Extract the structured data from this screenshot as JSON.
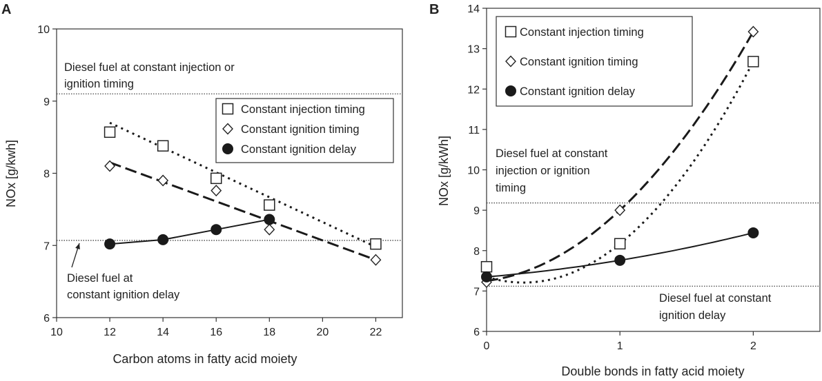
{
  "chart_data": [
    {
      "panel": "A",
      "type": "scatter",
      "xlabel": "Carbon atoms in fatty acid moiety",
      "ylabel": "NOx [g/kwh]",
      "xlim": [
        10,
        23
      ],
      "ylim": [
        6,
        10
      ],
      "xticks": [
        10,
        12,
        14,
        16,
        18,
        20,
        22
      ],
      "yticks": [
        6,
        7,
        8,
        9,
        10
      ],
      "legend_position": "right-middle",
      "series": [
        {
          "name": "Constant injection timing",
          "marker": "square",
          "x": [
            12,
            14,
            16,
            18,
            22
          ],
          "y": [
            8.57,
            8.38,
            7.93,
            7.56,
            7.02
          ],
          "fit": "dotted",
          "fit_x": [
            12,
            22
          ],
          "fit_y": [
            8.7,
            6.98
          ]
        },
        {
          "name": "Constant ignition timing",
          "marker": "diamond",
          "x": [
            12,
            14,
            16,
            18,
            22
          ],
          "y": [
            8.1,
            7.9,
            7.76,
            7.22,
            6.8
          ],
          "fit": "dashed",
          "fit_x": [
            12,
            22
          ],
          "fit_y": [
            8.15,
            6.8
          ]
        },
        {
          "name": "Constant ignition delay",
          "marker": "circle",
          "x": [
            12,
            14,
            16,
            18
          ],
          "y": [
            7.02,
            7.08,
            7.22,
            7.36
          ],
          "fit": "solid",
          "fit_x": [
            12,
            18
          ],
          "fit_y": [
            7.02,
            7.36
          ]
        }
      ],
      "reference_lines": [
        {
          "y": 9.1,
          "label_lines": [
            "Diesel fuel at constant injection or",
            "ignition timing"
          ]
        },
        {
          "y": 7.07,
          "label_lines": [
            "Diesel fuel at",
            "constant ignition delay"
          ]
        }
      ]
    },
    {
      "panel": "B",
      "type": "scatter",
      "xlabel": "Double bonds in fatty acid moiety",
      "ylabel": "NOx [g/kWh]",
      "xlim": [
        0,
        2.5
      ],
      "ylim": [
        6,
        14
      ],
      "xticks": [
        0,
        1,
        2
      ],
      "yticks": [
        6,
        7,
        8,
        9,
        10,
        11,
        12,
        13,
        14
      ],
      "legend_position": "top-left",
      "series": [
        {
          "name": "Constant injection timing",
          "marker": "square",
          "x": [
            0,
            1,
            2
          ],
          "y": [
            7.6,
            8.17,
            12.68
          ],
          "fit": "dotted",
          "fit_x": [
            0,
            2
          ],
          "fit_y": [
            7.35,
            12.68
          ]
        },
        {
          "name": "Constant ignition timing",
          "marker": "diamond",
          "x": [
            0,
            1,
            2
          ],
          "y": [
            7.22,
            9.0,
            13.42
          ],
          "fit": "dashed",
          "fit_x": [
            0,
            2
          ],
          "fit_y": [
            7.25,
            13.42
          ]
        },
        {
          "name": "Constant ignition delay",
          "marker": "circle",
          "x": [
            0,
            1,
            2
          ],
          "y": [
            7.35,
            7.76,
            8.44
          ],
          "fit": "solid",
          "fit_x": [
            0,
            2
          ],
          "fit_y": [
            7.35,
            8.44
          ]
        }
      ],
      "reference_lines": [
        {
          "y": 9.18,
          "label_lines": [
            "Diesel fuel at constant",
            "injection or ignition",
            "timing"
          ]
        },
        {
          "y": 7.12,
          "label_lines": [
            "Diesel fuel at constant",
            "ignition delay"
          ]
        }
      ]
    }
  ]
}
